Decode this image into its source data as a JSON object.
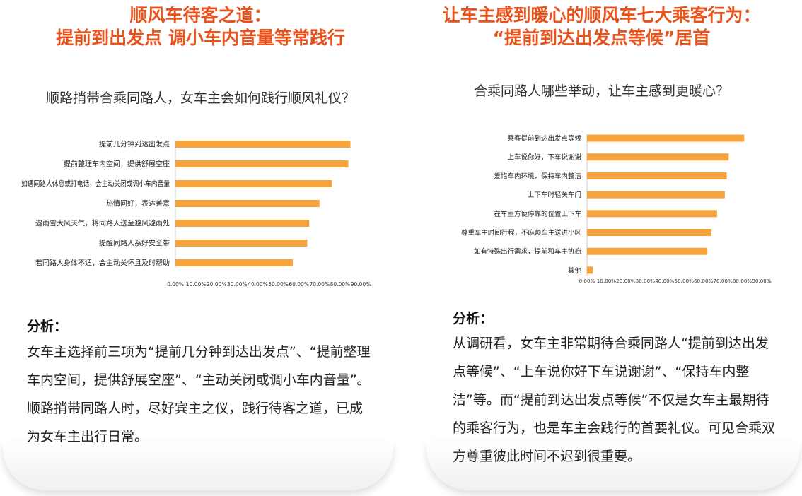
{
  "left": {
    "title_line1": "顺风车待客之道：",
    "title_line2": "提前到出发点 调小车内音量等常践行",
    "question": "顺路捎带合乘同路人，女车主会如何践行顺风礼仪？",
    "analysis_title": "分析：",
    "analysis_text": "女车主选择前三项为“提前几分钟到达出发点”、“提前整理车内空间，提供舒展空座”、“主动关闭或调小车内音量”。顺路捎带同路人时，尽好宾主之仪，践行待客之道，已成为女车主出行日常。"
  },
  "right": {
    "title_line1": "让车主感到暖心的顺风车七大乘客行为：",
    "title_line2": "“提前到达出发点等候”居首",
    "question": "合乘同路人哪些举动，让车主感到更暖心？",
    "analysis_title": "分析：",
    "analysis_text": "从调研看，女车主非常期待合乘同路人“提前到达出发点等候”、“上车说你好下车说谢谢”、“保持车内整洁”等。而“提前到达出发点等候”不仅是女车主最期待的乘客行为，也是车主会践行的首要礼仪。可见合乘双方尊重彼此时间不迟到很重要。"
  },
  "colors": {
    "title": "#e8521c",
    "bar": "#f5a33a"
  },
  "chart_data": [
    {
      "type": "bar",
      "orientation": "horizontal",
      "categories": [
        "提前几分钟到达出发点",
        "提前整理车内空间，提供舒展空座",
        "如遇同路人休息或打电话，会主动关闭或调小车内音量",
        "热情问好，表达善意",
        "遇雨雪大风天气，将同路人送至避风避雨处",
        "提醒同路人系好安全带",
        "若同路人身体不适，会主动关怀且及时帮助"
      ],
      "values": [
        0.85,
        0.84,
        0.76,
        0.7,
        0.65,
        0.64,
        0.57
      ],
      "xlim": [
        0,
        0.9
      ],
      "xticks": [
        "0.00%",
        "10.00%",
        "20.00%",
        "30.00%",
        "40.00%",
        "50.00%",
        "60.00%",
        "70.00%",
        "80.00%",
        "90.00%"
      ],
      "grid": false
    },
    {
      "type": "bar",
      "orientation": "horizontal",
      "categories": [
        "乘客提前到达出发点等候",
        "上车说你好，下车说谢谢",
        "爱惜车内环境，保持车内整洁",
        "上下车时轻关车门",
        "在车主方便停靠的位置上下车",
        "尊重车主时间行程，不麻烦车主送进小区",
        "如有特殊出行需求，提前和车主协商",
        "其他"
      ],
      "values": [
        0.81,
        0.73,
        0.72,
        0.71,
        0.67,
        0.64,
        0.62,
        0.03
      ],
      "xlim": [
        0,
        0.9
      ],
      "xticks": [
        "0.00%",
        "10.00%",
        "20.00%",
        "30.00%",
        "40.00%",
        "50.00%",
        "60.00%",
        "70.00%",
        "80.00%",
        "90.00%"
      ],
      "grid": false
    }
  ]
}
